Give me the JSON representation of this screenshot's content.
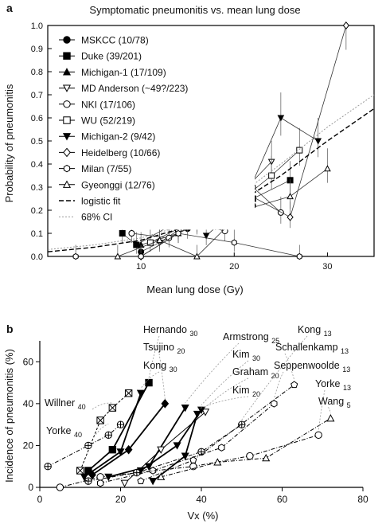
{
  "chart_data": [
    {
      "panel_label": "a",
      "type": "line",
      "title": "Symptomatic pneumonitis vs. mean lung dose",
      "xlabel": "Mean lung dose (Gy)",
      "ylabel": "Probability of pneumonitis",
      "xlim": [
        0,
        35
      ],
      "ylim": [
        0,
        1.0
      ],
      "xticks": [
        "10",
        "20",
        "30"
      ],
      "yticks": [
        "0.0",
        "0.1",
        "0.2",
        "0.3",
        "0.4",
        "0.5",
        "0.6",
        "0.7",
        "0.8",
        "0.9",
        "1.0"
      ],
      "legend_position": "top-left",
      "series": [
        {
          "name": "MSKCC (10/78)",
          "marker": "circle-filled",
          "x": [
            10,
            15,
            18,
            20,
            22
          ],
          "y": [
            0.02,
            0.12,
            0.16,
            0.25,
            0.22
          ]
        },
        {
          "name": "Duke (39/201)",
          "marker": "square-filled",
          "x": [
            8,
            9.5,
            13,
            15.5,
            22,
            26
          ],
          "y": [
            0.1,
            0.05,
            0.13,
            0.18,
            0.25,
            0.33
          ]
        },
        {
          "name": "Michigan-1 (17/109)",
          "marker": "triangle-up-filled",
          "x": [
            10,
            14,
            17,
            19,
            21
          ],
          "y": [
            0.05,
            0.1,
            0.32,
            0.2,
            0.3
          ]
        },
        {
          "name": "MD Anderson (~49?/223)",
          "marker": "triangle-down-open",
          "x": [
            12,
            15,
            19,
            24
          ],
          "y": [
            0.06,
            0.14,
            0.2,
            0.41
          ]
        },
        {
          "name": "NKI (17/106)",
          "marker": "circle-open",
          "x": [
            9,
            13,
            16,
            19,
            22,
            25
          ],
          "y": [
            0.1,
            0.08,
            0.14,
            0.11,
            0.3,
            0.19
          ]
        },
        {
          "name": "WU (52/219)",
          "marker": "square-open",
          "x": [
            11,
            14,
            17,
            20,
            24,
            27
          ],
          "y": [
            0.06,
            0.12,
            0.2,
            0.22,
            0.35,
            0.46
          ]
        },
        {
          "name": "Michigan-2 (9/42)",
          "marker": "triangle-down-filled",
          "x": [
            17,
            21,
            25,
            29
          ],
          "y": [
            0.09,
            0.23,
            0.6,
            0.5
          ]
        },
        {
          "name": "Heidelberg (10/66)",
          "marker": "diamond-open",
          "x": [
            10,
            16,
            21,
            26,
            32
          ],
          "y": [
            0.0,
            0.15,
            0.28,
            0.17,
            1.0
          ]
        },
        {
          "name": "Milan (7/55)",
          "marker": "hexagon-open",
          "x": [
            3,
            10,
            14,
            20,
            27
          ],
          "y": [
            0.0,
            0.0,
            0.1,
            0.06,
            0.0
          ]
        },
        {
          "name": "Gyeonggi (12/76)",
          "marker": "triangle-up-open",
          "x": [
            7.5,
            12,
            16,
            21,
            26,
            30
          ],
          "y": [
            0.0,
            0.07,
            0.0,
            0.2,
            0.26,
            0.38
          ]
        },
        {
          "name": "logistic fit",
          "style": "dashed",
          "x": [
            0,
            5,
            10,
            15,
            20,
            25,
            30,
            35
          ],
          "y": [
            0.02,
            0.04,
            0.07,
            0.13,
            0.22,
            0.35,
            0.5,
            0.64
          ]
        },
        {
          "name": "68% CI",
          "style": "dotted",
          "x": [
            0,
            5,
            10,
            15,
            20,
            25,
            30,
            35
          ],
          "y": [
            0.03,
            0.05,
            0.08,
            0.14,
            0.25,
            0.4,
            0.56,
            0.7
          ]
        }
      ]
    },
    {
      "panel_label": "b",
      "type": "line",
      "title": "",
      "xlabel": "Vx (%)",
      "ylabel": "Incidence of pneumonitis (%)",
      "xlim": [
        0,
        80
      ],
      "ylim": [
        0,
        70
      ],
      "xticks": [
        "0",
        "20",
        "40",
        "60",
        "80"
      ],
      "yticks": [
        "0",
        "20",
        "40",
        "60"
      ],
      "annotations": [
        {
          "base": "Hernando",
          "sub": "30"
        },
        {
          "base": "Tsujino",
          "sub": "20"
        },
        {
          "base": "Kong",
          "sub": "30"
        },
        {
          "base": "Armstrong",
          "sub": "25"
        },
        {
          "base": "Kim",
          "sub": "30"
        },
        {
          "base": "Graham",
          "sub": "20"
        },
        {
          "base": "Kim",
          "sub": "20"
        },
        {
          "base": "Willner",
          "sub": "40"
        },
        {
          "base": "Yorke",
          "sub": "40"
        },
        {
          "base": "Kong",
          "sub": "13"
        },
        {
          "base": "Schallenkamp",
          "sub": "13"
        },
        {
          "base": "Seppenwoolde",
          "sub": "13"
        },
        {
          "base": "Yorke",
          "sub": "13"
        },
        {
          "base": "Wang",
          "sub": "5"
        }
      ],
      "series": [
        {
          "name": "Willner V40",
          "marker": "square-x",
          "x": [
            10,
            15,
            18,
            22
          ],
          "y": [
            8,
            32,
            38,
            45
          ]
        },
        {
          "name": "Yorke V40",
          "marker": "circle-plus",
          "x": [
            2,
            12,
            17,
            20
          ],
          "y": [
            10,
            20,
            25,
            30
          ]
        },
        {
          "name": "Hernando V30",
          "marker": "square-filled",
          "x": [
            12,
            18,
            27
          ],
          "y": [
            8,
            18,
            50
          ]
        },
        {
          "name": "Tsujino V20",
          "marker": "diamond-filled",
          "x": [
            13,
            22,
            31
          ],
          "y": [
            6,
            18,
            40
          ]
        },
        {
          "name": "Kong V30",
          "marker": "triangle-down-filled",
          "x": [
            11,
            20,
            25
          ],
          "y": [
            5,
            17,
            45
          ]
        },
        {
          "name": "Armstrong V25",
          "marker": "triangle-down-filled",
          "x": [
            17,
            27,
            36
          ],
          "y": [
            5,
            10,
            38
          ]
        },
        {
          "name": "Graham V20",
          "marker": "triangle-down-open",
          "x": [
            21,
            30,
            41
          ],
          "y": [
            2,
            18,
            36
          ]
        },
        {
          "name": "Kim V30",
          "marker": "triangle-down-filled",
          "x": [
            25,
            34,
            40
          ],
          "y": [
            8,
            20,
            37
          ]
        },
        {
          "name": "Kim V20",
          "marker": "triangle-down-filled",
          "x": [
            28,
            36,
            39
          ],
          "y": [
            3,
            15,
            35
          ]
        },
        {
          "name": "Kong V13",
          "marker": "circle-plus",
          "x": [
            12,
            24,
            40,
            50
          ],
          "y": [
            3,
            7,
            17,
            30
          ]
        },
        {
          "name": "Schallenkamp V13",
          "marker": "pentagon-open",
          "x": [
            25,
            38,
            63
          ],
          "y": [
            3,
            13,
            49
          ]
        },
        {
          "name": "Seppenwoolde V13",
          "marker": "hexagon-open",
          "x": [
            15,
            28,
            45,
            58
          ],
          "y": [
            2,
            8,
            19,
            40
          ]
        },
        {
          "name": "Yorke V13",
          "marker": "circle-open",
          "x": [
            5,
            15,
            38,
            52,
            69
          ],
          "y": [
            0,
            5,
            10,
            15,
            25
          ]
        },
        {
          "name": "Wang V5",
          "marker": "triangle-up-open",
          "x": [
            30,
            44,
            56,
            72
          ],
          "y": [
            5,
            12,
            14,
            33
          ]
        }
      ]
    }
  ]
}
